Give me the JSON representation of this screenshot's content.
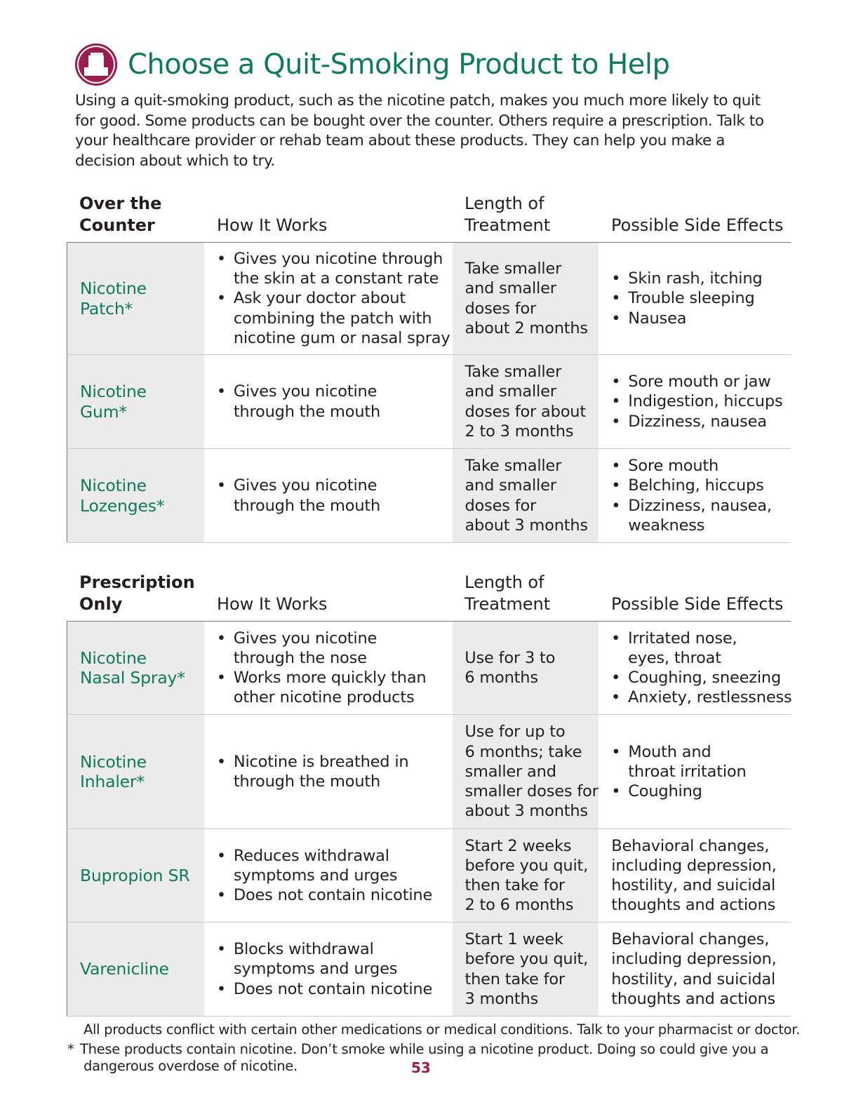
{
  "title": "Choose a Quit-Smoking Product to Help",
  "icon": "pharmacy-register-icon",
  "intro": "Using a quit-smoking product, such as the nicotine patch, makes you much more likely to quit for good. Some products can be bought over the counter. Others require a prescription. Talk to your healthcare provider or rehab team about these products. They can help you make a decision about which to try.",
  "colors": {
    "accent_green": "#0f7a5b",
    "accent_magenta": "#9b1d4f",
    "cell_gray": "#ebebeb"
  },
  "tables": [
    {
      "section": [
        "Over the",
        "Counter"
      ],
      "headers": {
        "how": "How It Works",
        "length": [
          "Length of",
          "Treatment"
        ],
        "effects": "Possible Side Effects"
      },
      "rows": [
        {
          "name": [
            "Nicotine",
            "Patch*"
          ],
          "how": [
            [
              "Gives you nicotine through",
              "the skin at a constant rate"
            ],
            [
              "Ask your doctor about",
              "combining the patch with",
              "nicotine gum or nasal spray"
            ]
          ],
          "length": [
            "Take smaller",
            "and smaller",
            "doses for",
            "about 2 months"
          ],
          "effects": [
            [
              "Skin rash, itching"
            ],
            [
              "Trouble sleeping"
            ],
            [
              "Nausea"
            ]
          ]
        },
        {
          "name": [
            "Nicotine",
            "Gum*"
          ],
          "how": [
            [
              "Gives you nicotine",
              "through the mouth"
            ]
          ],
          "length": [
            "Take smaller",
            "and smaller",
            "doses for about",
            "2 to 3 months"
          ],
          "effects": [
            [
              "Sore mouth or jaw"
            ],
            [
              "Indigestion, hiccups"
            ],
            [
              "Dizziness, nausea"
            ]
          ]
        },
        {
          "name": [
            "Nicotine",
            "Lozenges*"
          ],
          "how": [
            [
              "Gives you nicotine",
              "through the mouth"
            ]
          ],
          "length": [
            "Take smaller",
            "and smaller",
            "doses for",
            "about 3 months"
          ],
          "effects": [
            [
              "Sore mouth"
            ],
            [
              "Belching, hiccups"
            ],
            [
              "Dizziness, nausea,",
              "weakness"
            ]
          ]
        }
      ]
    },
    {
      "section": [
        "Prescription",
        "Only"
      ],
      "headers": {
        "how": "How It Works",
        "length": [
          "Length of",
          "Treatment"
        ],
        "effects": "Possible Side Effects"
      },
      "rows": [
        {
          "name": [
            "Nicotine",
            "Nasal Spray*"
          ],
          "how": [
            [
              "Gives you nicotine",
              "through the nose"
            ],
            [
              "Works more quickly than",
              "other nicotine products"
            ]
          ],
          "length": [
            "Use for 3 to",
            "6 months"
          ],
          "effects": [
            [
              "Irritated nose,",
              "eyes, throat"
            ],
            [
              "Coughing, sneezing"
            ],
            [
              "Anxiety, restlessness"
            ]
          ]
        },
        {
          "name": [
            "Nicotine",
            "Inhaler*"
          ],
          "how": [
            [
              "Nicotine is breathed in",
              "through the mouth"
            ]
          ],
          "length": [
            "Use for up to",
            "6 months; take",
            "smaller and",
            "smaller doses for",
            "about 3 months"
          ],
          "effects": [
            [
              "Mouth and",
              "throat irritation"
            ],
            [
              "Coughing"
            ]
          ]
        },
        {
          "name": [
            "Bupropion SR"
          ],
          "how": [
            [
              "Reduces withdrawal",
              "symptoms and urges"
            ],
            [
              "Does not contain nicotine"
            ]
          ],
          "length": [
            "Start 2 weeks",
            "before you quit,",
            "then take for",
            "2 to 6 months"
          ],
          "effects_text": [
            "Behavioral changes,",
            "including depression,",
            "hostility, and suicidal",
            "thoughts and actions"
          ]
        },
        {
          "name": [
            "Varenicline"
          ],
          "how": [
            [
              "Blocks withdrawal",
              "symptoms and urges"
            ],
            [
              "Does not contain nicotine"
            ]
          ],
          "length": [
            "Start 1 week",
            "before you quit,",
            "then take for",
            "3 months"
          ],
          "effects_text": [
            "Behavioral changes,",
            "including depression,",
            "hostility, and suicidal",
            "thoughts and actions"
          ]
        }
      ]
    }
  ],
  "footnotes": {
    "all": "All products conflict with certain other medications or medical conditions. Talk to your pharmacist or doctor.",
    "star_mark": "*",
    "star": "These products contain nicotine. Don’t smoke while using a nicotine product. Doing so could give you a",
    "star_cont": "dangerous overdose of nicotine."
  },
  "page_number": "53"
}
